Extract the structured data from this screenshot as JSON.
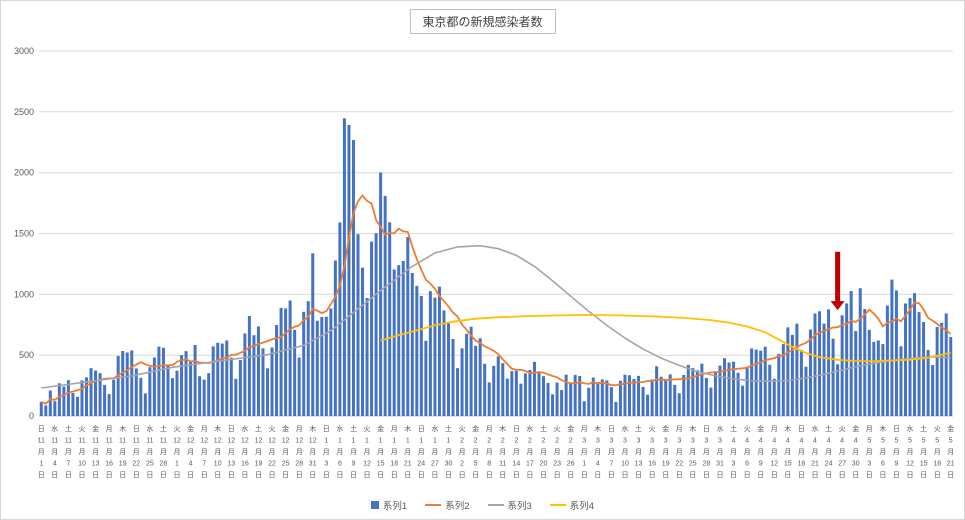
{
  "title": "東京都の新規感染者数",
  "legend": [
    {
      "label": "系列1",
      "color": "#4472C4"
    },
    {
      "label": "系列2",
      "color": "#ED7D31"
    },
    {
      "label": "系列3",
      "color": "#A5A5A5"
    },
    {
      "label": "系列4",
      "color": "#FFC000"
    }
  ],
  "chart_data": {
    "type": "bar",
    "title": "東京都の新規感染者数",
    "xlabel": "",
    "ylabel": "",
    "ylim": [
      0,
      3000
    ],
    "ytick_interval": 500,
    "grid": true,
    "legend_position": "bottom",
    "x_axis": {
      "start_date": "11月1日",
      "end_date": "5月21日",
      "start_weekday": "日",
      "label_interval_days": 3,
      "weekday_chars": [
        "日",
        "月",
        "火",
        "水",
        "木",
        "金",
        "土"
      ],
      "month_days": [
        [
          "11",
          30
        ],
        [
          "12",
          31
        ],
        [
          "1",
          31
        ],
        [
          "2",
          28
        ],
        [
          "3",
          31
        ],
        [
          "4",
          30
        ],
        [
          "5",
          21
        ]
      ]
    },
    "series": [
      {
        "name": "系列1",
        "type": "bar",
        "color": "#4472C4",
        "values": [
          116,
          87,
          209,
          122,
          269,
          242,
          294,
          189,
          157,
          293,
          317,
          393,
          374,
          352,
          255,
          180,
          298,
          493,
          534,
          522,
          539,
          391,
          314,
          186,
          401,
          481,
          570,
          561,
          418,
          311,
          372,
          500,
          533,
          449,
          584,
          327,
          299,
          352,
          572,
          602,
          595,
          621,
          480,
          305,
          460,
          678,
          822,
          664,
          736,
          556,
          392,
          563,
          748,
          888,
          884,
          949,
          708,
          481,
          856,
          944,
          1337,
          783,
          814,
          816,
          884,
          1278,
          1591,
          2447,
          2392,
          2268,
          1494,
          1219,
          970,
          1433,
          1502,
          2001,
          1809,
          1592,
          1204,
          1240,
          1274,
          1471,
          1175,
          1070,
          986,
          618,
          1026,
          973,
          1064,
          868,
          769,
          633,
          393,
          556,
          676,
          734,
          577,
          639,
          429,
          276,
          412,
          491,
          434,
          307,
          369,
          371,
          266,
          350,
          378,
          445,
          353,
          327,
          272,
          178,
          275,
          213,
          340,
          270,
          337,
          329,
          121,
          232,
          316,
          279,
          301,
          293,
          237,
          116,
          290,
          340,
          335,
          304,
          330,
          239,
          175,
          300,
          409,
          323,
          303,
          342,
          256,
          187,
          337,
          420,
          394,
          376,
          430,
          313,
          234,
          364,
          414,
          475,
          440,
          446,
          355,
          249,
          399,
          555,
          545,
          537,
          570,
          421,
          306,
          510,
          591,
          729,
          667,
          759,
          543,
          405,
          711,
          843,
          861,
          759,
          876,
          635,
          425,
          828,
          925,
          1027,
          698,
          1050,
          879,
          708,
          609,
          621,
          591,
          907,
          1121,
          1032,
          573,
          925,
          969,
          1010,
          854,
          772,
          542,
          419,
          732,
          766,
          843,
          649
        ]
      },
      {
        "name": "系列2",
        "type": "line",
        "color": "#ED7D31",
        "derived": "7-day moving average of 系列1 (computed from its values)"
      },
      {
        "name": "系列3",
        "type": "line",
        "color": "#A5A5A5",
        "points": [
          [
            0,
            230
          ],
          [
            10,
            280
          ],
          [
            20,
            330
          ],
          [
            29,
            400
          ],
          [
            40,
            455
          ],
          [
            50,
            505
          ],
          [
            58,
            580
          ],
          [
            64,
            700
          ],
          [
            70,
            880
          ],
          [
            76,
            1060
          ],
          [
            82,
            1230
          ],
          [
            87,
            1340
          ],
          [
            92,
            1390
          ],
          [
            97,
            1400
          ],
          [
            101,
            1375
          ],
          [
            105,
            1320
          ],
          [
            109,
            1230
          ],
          [
            113,
            1110
          ],
          [
            117,
            985
          ],
          [
            121,
            860
          ],
          [
            125,
            745
          ],
          [
            129,
            640
          ],
          [
            133,
            550
          ],
          [
            137,
            475
          ],
          [
            141,
            415
          ],
          [
            145,
            365
          ],
          [
            149,
            330
          ],
          [
            153,
            305
          ],
          [
            157,
            290
          ],
          [
            161,
            285
          ],
          [
            165,
            292
          ],
          [
            169,
            312
          ],
          [
            173,
            342
          ],
          [
            177,
            378
          ],
          [
            181,
            412
          ],
          [
            185,
            440
          ],
          [
            189,
            462
          ],
          [
            193,
            476
          ],
          [
            197,
            485
          ],
          [
            201,
            478
          ]
        ]
      },
      {
        "name": "系列4",
        "type": "line",
        "color": "#FFC000",
        "points": [
          [
            75,
            620
          ],
          [
            79,
            665
          ],
          [
            83,
            705
          ],
          [
            87,
            745
          ],
          [
            91,
            775
          ],
          [
            96,
            800
          ],
          [
            101,
            812
          ],
          [
            107,
            820
          ],
          [
            113,
            826
          ],
          [
            120,
            830
          ],
          [
            128,
            827
          ],
          [
            136,
            818
          ],
          [
            142,
            806
          ],
          [
            148,
            788
          ],
          [
            152,
            768
          ],
          [
            156,
            736
          ],
          [
            160,
            688
          ],
          [
            163,
            628
          ],
          [
            166,
            568
          ],
          [
            169,
            518
          ],
          [
            172,
            484
          ],
          [
            176,
            462
          ],
          [
            180,
            452
          ],
          [
            184,
            450
          ],
          [
            188,
            456
          ],
          [
            192,
            463
          ],
          [
            196,
            479
          ],
          [
            201,
            520
          ]
        ]
      }
    ],
    "annotation": {
      "shape": "down-arrow",
      "color": "#C00000",
      "day_index": 176,
      "date": "4月26日",
      "value_top": 1350,
      "value_bottom": 870
    }
  }
}
